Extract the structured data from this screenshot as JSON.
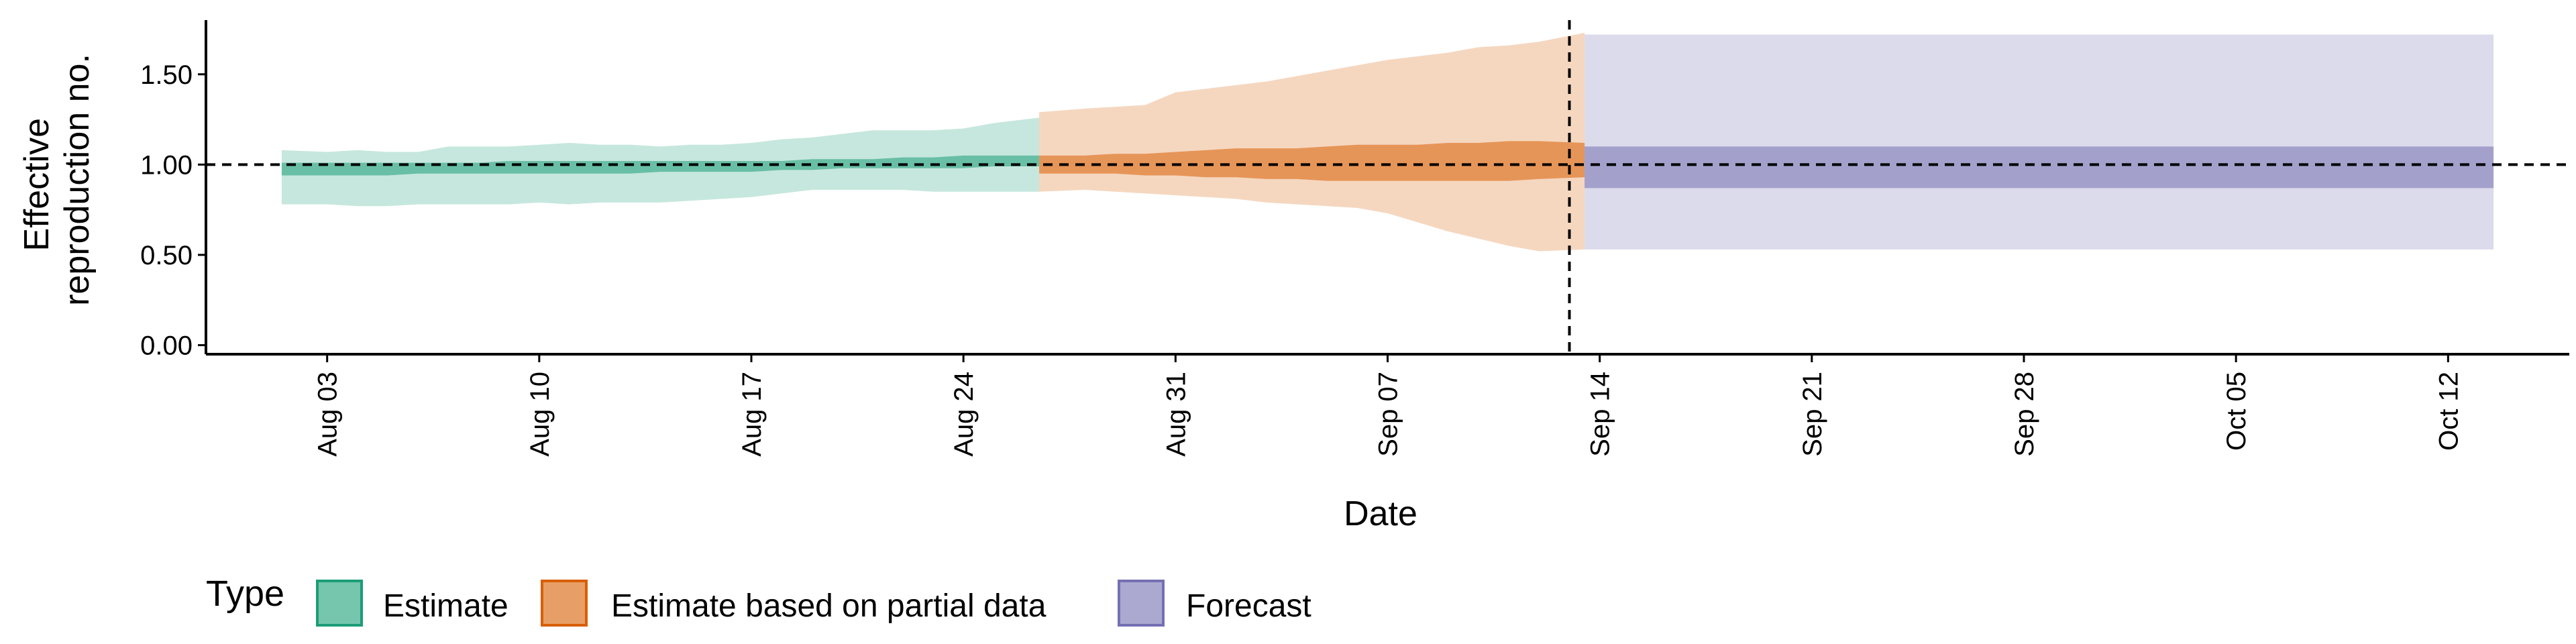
{
  "chart_data": {
    "type": "area",
    "xlabel": "Date",
    "ylabel_lines": [
      "Effective",
      "reproduction no."
    ],
    "ylim": [
      -0.05,
      1.8
    ],
    "xlim": [
      "2020-07-30",
      "2020-10-16"
    ],
    "y_ticks": [
      "0.00",
      "0.50",
      "1.00",
      "1.50"
    ],
    "x_ticks": [
      "Aug 03",
      "Aug 10",
      "Aug 17",
      "Aug 24",
      "Aug 31",
      "Sep 07",
      "Sep 14",
      "Sep 21",
      "Sep 28",
      "Oct 05",
      "Oct 12"
    ],
    "x_tick_dates": [
      "2020-08-03",
      "2020-08-10",
      "2020-08-17",
      "2020-08-24",
      "2020-08-31",
      "2020-09-07",
      "2020-09-14",
      "2020-09-21",
      "2020-09-28",
      "2020-10-05",
      "2020-10-12"
    ],
    "reference_line_y": 1.0,
    "vline_date": "2020-09-13",
    "grid": false,
    "legend": {
      "title": "Type",
      "position": "bottom",
      "entries": [
        "Estimate",
        "Estimate based on partial data",
        "Forecast"
      ]
    },
    "series": [
      {
        "name": "Estimate",
        "fill": "#1b9e77",
        "border": "#1b9e77",
        "dates": [
          "2020-08-02",
          "2020-08-03",
          "2020-08-04",
          "2020-08-05",
          "2020-08-06",
          "2020-08-07",
          "2020-08-08",
          "2020-08-09",
          "2020-08-10",
          "2020-08-11",
          "2020-08-12",
          "2020-08-13",
          "2020-08-14",
          "2020-08-15",
          "2020-08-16",
          "2020-08-17",
          "2020-08-18",
          "2020-08-19",
          "2020-08-20",
          "2020-08-21",
          "2020-08-22",
          "2020-08-23",
          "2020-08-24",
          "2020-08-25",
          "2020-08-26"
        ],
        "outer_lower": [
          0.78,
          0.78,
          0.77,
          0.77,
          0.78,
          0.78,
          0.78,
          0.78,
          0.79,
          0.78,
          0.79,
          0.79,
          0.79,
          0.8,
          0.81,
          0.82,
          0.84,
          0.86,
          0.86,
          0.86,
          0.86,
          0.85,
          0.85,
          0.85,
          0.85
        ],
        "outer_upper": [
          1.08,
          1.07,
          1.08,
          1.07,
          1.07,
          1.1,
          1.1,
          1.1,
          1.11,
          1.12,
          1.11,
          1.11,
          1.1,
          1.11,
          1.11,
          1.12,
          1.14,
          1.15,
          1.17,
          1.19,
          1.19,
          1.19,
          1.2,
          1.23,
          1.26
        ],
        "inner_lower": [
          0.94,
          0.94,
          0.94,
          0.94,
          0.95,
          0.95,
          0.95,
          0.95,
          0.95,
          0.95,
          0.95,
          0.95,
          0.96,
          0.96,
          0.96,
          0.96,
          0.97,
          0.97,
          0.98,
          0.98,
          0.98,
          0.98,
          0.98,
          0.99,
          0.99
        ],
        "inner_upper": [
          1.01,
          1.01,
          1.01,
          1.01,
          1.01,
          1.01,
          1.01,
          1.02,
          1.02,
          1.02,
          1.02,
          1.02,
          1.02,
          1.02,
          1.02,
          1.02,
          1.02,
          1.03,
          1.03,
          1.03,
          1.04,
          1.04,
          1.05,
          1.05,
          1.05
        ]
      },
      {
        "name": "Estimate based on partial data",
        "fill": "#d95f02",
        "border": "#d95f02",
        "dates": [
          "2020-08-27",
          "2020-08-28",
          "2020-08-29",
          "2020-08-30",
          "2020-08-31",
          "2020-09-01",
          "2020-09-02",
          "2020-09-03",
          "2020-09-04",
          "2020-09-05",
          "2020-09-06",
          "2020-09-07",
          "2020-09-08",
          "2020-09-09",
          "2020-09-10",
          "2020-09-11",
          "2020-09-12",
          "2020-09-13"
        ],
        "outer_lower": [
          0.85,
          0.86,
          0.85,
          0.84,
          0.83,
          0.82,
          0.81,
          0.79,
          0.78,
          0.77,
          0.76,
          0.73,
          0.68,
          0.63,
          0.59,
          0.55,
          0.52,
          0.53
        ],
        "outer_upper": [
          1.29,
          1.31,
          1.32,
          1.33,
          1.4,
          1.42,
          1.44,
          1.46,
          1.49,
          1.52,
          1.55,
          1.58,
          1.6,
          1.62,
          1.65,
          1.66,
          1.68,
          1.73
        ],
        "inner_lower": [
          0.95,
          0.95,
          0.95,
          0.94,
          0.94,
          0.93,
          0.93,
          0.92,
          0.92,
          0.91,
          0.91,
          0.91,
          0.91,
          0.91,
          0.91,
          0.91,
          0.92,
          0.93
        ],
        "inner_upper": [
          1.05,
          1.05,
          1.06,
          1.06,
          1.07,
          1.08,
          1.09,
          1.09,
          1.09,
          1.1,
          1.11,
          1.11,
          1.11,
          1.12,
          1.12,
          1.13,
          1.13,
          1.12
        ]
      },
      {
        "name": "Forecast",
        "fill": "#7570b3",
        "border": "#7570b3",
        "dates": [
          "2020-09-14",
          "2020-10-13"
        ],
        "outer_lower": [
          0.53,
          0.53
        ],
        "outer_upper": [
          1.72,
          1.72
        ],
        "inner_lower": [
          0.87,
          0.87
        ],
        "inner_upper": [
          1.1,
          1.1
        ]
      }
    ]
  }
}
